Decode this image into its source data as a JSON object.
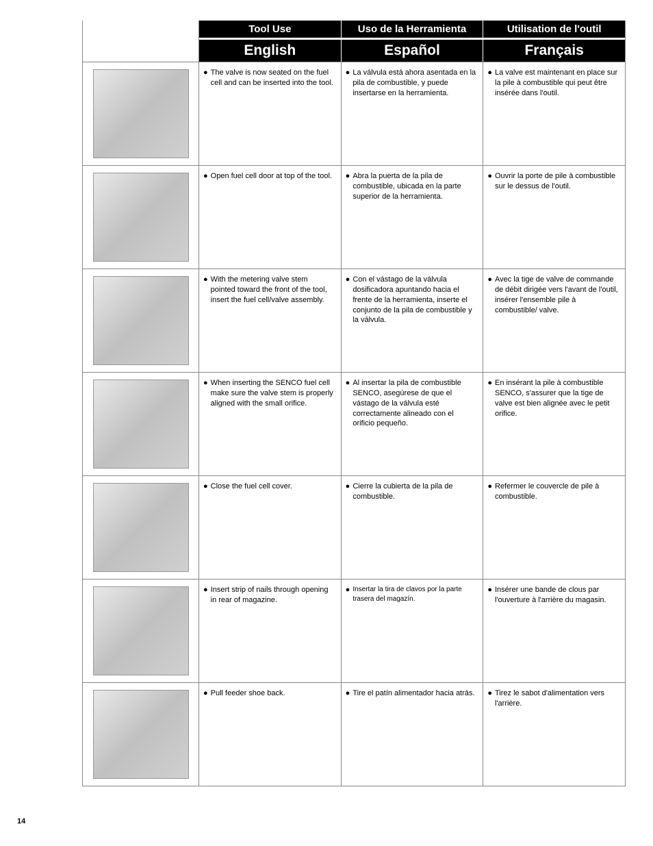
{
  "page_number": "14",
  "header": {
    "row1": [
      "Tool Use",
      "Uso de la Herramienta",
      "Utilisation de l'outil"
    ],
    "row2": [
      "English",
      "Español",
      "Français"
    ]
  },
  "rows": [
    {
      "img_alt": "fuel cell valve",
      "en": "The valve is now seated on the fuel cell and can be inserted into the tool.",
      "es": "La válvula está ahora asentada en la pila de combustible, y puede insertarse en la herramienta.",
      "fr": "La valve est maintenant en place sur la pile à combustible qui peut être insérée dans l'outil."
    },
    {
      "img_alt": "open fuel door",
      "en": "Open fuel cell door at top of the tool.",
      "es": "Abra la puerta de la pila de combustible, ubicada en la parte superior de la herramienta.",
      "fr": "Ouvrir la porte de pile à combustible sur le dessus de l'outil."
    },
    {
      "img_alt": "insert fuel cell",
      "en": "With the metering valve stem pointed toward the front of the tool, insert the fuel cell/valve assembly.",
      "es": "Con el vástago de la válvula dosificadora apuntando hacia el frente de la herramienta, inserte el conjunto de la pila de combustible y la válvula.",
      "fr": "Avec la tige de valve de commande de débit dirigée vers l'avant de l'outil, insérer l'ensemble pile à combustible/ valve."
    },
    {
      "img_alt": "align valve stem",
      "en": "When inserting the SENCO fuel cell make sure the valve stem is properly aligned with the small orifice.",
      "es": "Al insertar la pila de combustible SENCO, asegúrese de que el vástago de la válvula esté correctamente alineado con el orificio pequeño.",
      "fr": "En insérant la pile à combustible SENCO, s'assurer que la tige de valve est bien alignée avec le petit orifice."
    },
    {
      "img_alt": "close cover",
      "en": "Close the fuel cell cover.",
      "es": "Cierre la cubierta de la pila de combustible.",
      "fr": "Refermer le couvercle de pile à combustible."
    },
    {
      "img_alt": "insert nails",
      "en": "Insert strip of nails through opening in rear of magazine.",
      "es": "Insertar la tira de clavos por la parte trasera del magazín.",
      "fr": "Insérer une bande de clous par l'ouverture à l'arrière du magasin.",
      "small_es": true
    },
    {
      "img_alt": "pull feeder",
      "en": "Pull feeder shoe back.",
      "es": "Tire el patín alimentador hacia atrás.",
      "fr": "Tirez le sabot d'alimentation vers l'arrière."
    }
  ],
  "colors": {
    "header_bg": "#000000",
    "header_fg": "#ffffff",
    "border": "#888888",
    "text": "#000000"
  }
}
